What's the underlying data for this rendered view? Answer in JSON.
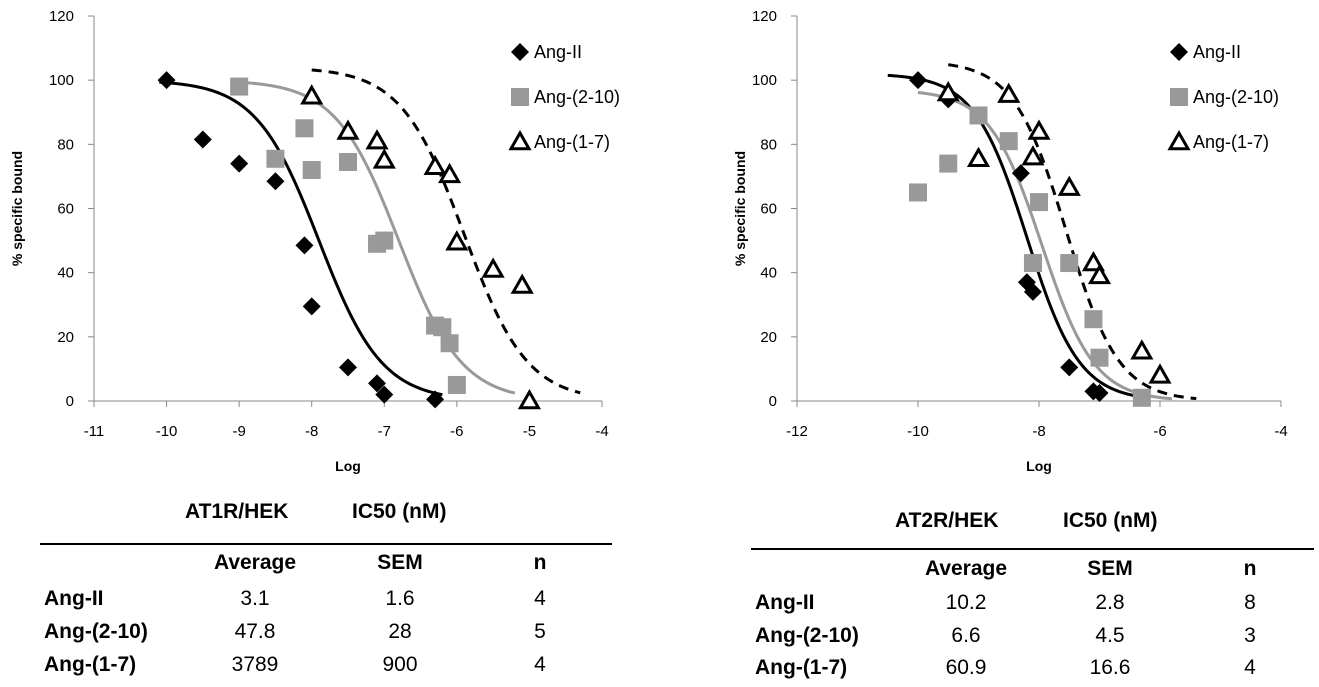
{
  "chart_data": [
    {
      "type": "scatter",
      "xlabel": "Log",
      "ylabel": "% specific bound",
      "xlim": [
        -11,
        -4
      ],
      "ylim": [
        0,
        120
      ],
      "xticks": [
        -11,
        -10,
        -9,
        -8,
        -7,
        -6,
        -5,
        -4
      ],
      "yticks": [
        0,
        20,
        40,
        60,
        80,
        100,
        120
      ],
      "legend_position": "top-right",
      "series": [
        {
          "name": "Ang-II",
          "marker": "diamond",
          "color": "#000000",
          "line": "solid",
          "fit": {
            "top": 100,
            "bottom": 0,
            "logIC50": -7.9,
            "hill": 1,
            "xmin": -10.1,
            "xmax": -6.2
          },
          "x": [
            -10,
            -9.5,
            -9,
            -8.5,
            -8.1,
            -8,
            -7.5,
            -7.1,
            -7,
            -6.3
          ],
          "y": [
            100,
            81.5,
            74,
            68.5,
            48.5,
            29.5,
            10.5,
            5.5,
            2,
            0.5
          ]
        },
        {
          "name": "Ang-(2-10)",
          "marker": "square",
          "color": "#999999",
          "line": "solid",
          "fit": {
            "top": 100,
            "bottom": 0,
            "logIC50": -6.8,
            "hill": 1,
            "xmin": -9,
            "xmax": -5.2
          },
          "x": [
            -9,
            -8.5,
            -8.1,
            -8,
            -7.5,
            -7.1,
            -7,
            -6.3,
            -6.2,
            -6.1,
            -6
          ],
          "y": [
            98,
            75.5,
            85,
            72,
            74.5,
            49,
            50,
            23.5,
            23,
            18,
            5
          ]
        },
        {
          "name": "Ang-(1-7)",
          "marker": "triangle-open",
          "color": "#000000",
          "line": "dashed",
          "fit": {
            "top": 104,
            "bottom": 0,
            "logIC50": -5.9,
            "hill": 1,
            "xmin": -8,
            "xmax": -4.3
          },
          "x": [
            -8,
            -7.5,
            -7.1,
            -7,
            -6.3,
            -6.1,
            -6,
            -5.5,
            -5.1,
            -5
          ],
          "y": [
            95,
            84,
            81,
            75,
            73,
            70.5,
            49.5,
            41,
            36,
            0
          ]
        }
      ]
    },
    {
      "type": "scatter",
      "xlabel": "Log",
      "ylabel": "% specific bound",
      "xlim": [
        -12,
        -4
      ],
      "ylim": [
        0,
        120
      ],
      "xticks": [
        -12,
        -10,
        -8,
        -6,
        -4
      ],
      "yticks": [
        0,
        20,
        40,
        60,
        80,
        100,
        120
      ],
      "legend_position": "top-right",
      "series": [
        {
          "name": "Ang-II",
          "marker": "diamond",
          "color": "#000000",
          "line": "solid",
          "fit": {
            "top": 102,
            "bottom": 0,
            "logIC50": -8.2,
            "hill": 1,
            "xmin": -10.5,
            "xmax": -6.3
          },
          "x": [
            -10,
            -9.5,
            -8.3,
            -8.2,
            -8.1,
            -7.5,
            -7.1,
            -7
          ],
          "y": [
            100,
            94,
            71,
            37,
            34,
            10.5,
            3,
            2.5
          ]
        },
        {
          "name": "Ang-(2-10)",
          "marker": "square",
          "color": "#999999",
          "line": "solid",
          "fit": {
            "top": 97,
            "bottom": 0,
            "logIC50": -7.95,
            "hill": 1,
            "xmin": -10,
            "xmax": -5.8
          },
          "x": [
            -10,
            -9.5,
            -9,
            -8.5,
            -8.1,
            -8,
            -7.5,
            -7.1,
            -7,
            -6.3
          ],
          "y": [
            65,
            74,
            89,
            81,
            43,
            62,
            43,
            25.5,
            13.5,
            1
          ]
        },
        {
          "name": "Ang-(1-7)",
          "marker": "triangle-open",
          "color": "#000000",
          "line": "dashed",
          "fit": {
            "top": 106,
            "bottom": 0,
            "logIC50": -7.55,
            "hill": 1,
            "xmin": -9.5,
            "xmax": -5.4
          },
          "x": [
            -9.5,
            -9,
            -8.5,
            -8.1,
            -8,
            -7.5,
            -7.1,
            -7,
            -6.3,
            -6
          ],
          "y": [
            96,
            75.5,
            95.5,
            76,
            84,
            66.5,
            43,
            39,
            15.5,
            8
          ]
        }
      ]
    }
  ],
  "tables": [
    {
      "caption_left": "AT1R/HEK",
      "caption_right": "IC50 (nM)",
      "headers": [
        "Average",
        "SEM",
        "n"
      ],
      "rows": [
        {
          "label": "Ang-II",
          "values": [
            "3.1",
            "1.6",
            "4"
          ]
        },
        {
          "label": "Ang-(2-10)",
          "values": [
            "47.8",
            "28",
            "5"
          ]
        },
        {
          "label": "Ang-(1-7)",
          "values": [
            "3789",
            "900",
            "4"
          ]
        }
      ]
    },
    {
      "caption_left": "AT2R/HEK",
      "caption_right": "IC50 (nM)",
      "headers": [
        "Average",
        "SEM",
        "n"
      ],
      "rows": [
        {
          "label": "Ang-II",
          "values": [
            "10.2",
            "2.8",
            "8"
          ]
        },
        {
          "label": "Ang-(2-10)",
          "values": [
            "6.6",
            "4.5",
            "3"
          ]
        },
        {
          "label": "Ang-(1-7)",
          "values": [
            "60.9",
            "16.6",
            "4"
          ]
        }
      ]
    }
  ]
}
